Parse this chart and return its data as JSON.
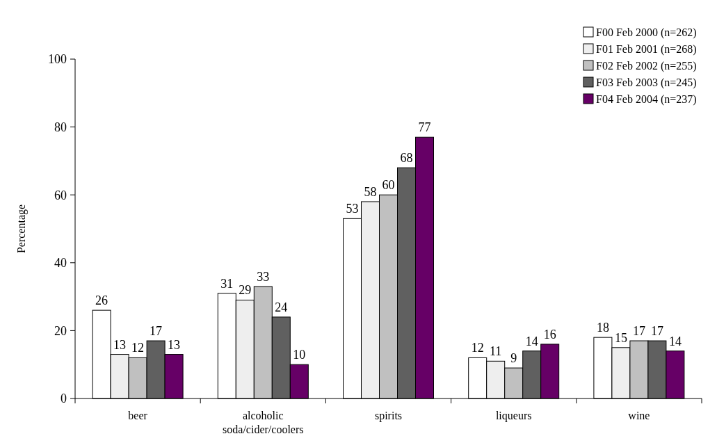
{
  "chart_data": {
    "type": "bar",
    "ylabel": "Percentage",
    "categories": [
      "beer",
      "alcoholic soda/cider/coolers",
      "spirits",
      "liqueurs",
      "wine"
    ],
    "series": [
      {
        "name": "F00 Feb 2000 (n=262)",
        "color": "#ffffff",
        "values": [
          26,
          31,
          53,
          12,
          18
        ]
      },
      {
        "name": "F01 Feb 2001 (n=268)",
        "color": "#eeeeee",
        "values": [
          13,
          29,
          58,
          11,
          15
        ]
      },
      {
        "name": "F02 Feb 2002 (n=255)",
        "color": "#c0c0c0",
        "values": [
          12,
          33,
          60,
          9,
          17
        ]
      },
      {
        "name": "F03 Feb 2003 (n=245)",
        "color": "#606060",
        "values": [
          17,
          24,
          68,
          14,
          17
        ]
      },
      {
        "name": "F04 Feb 2004 (n=237)",
        "color": "#660066",
        "values": [
          13,
          10,
          77,
          16,
          14
        ]
      }
    ],
    "ylim": [
      0,
      100
    ],
    "yticks": [
      0,
      20,
      40,
      60,
      80,
      100
    ],
    "grid": false,
    "legend": "top right",
    "data_labels": true
  }
}
